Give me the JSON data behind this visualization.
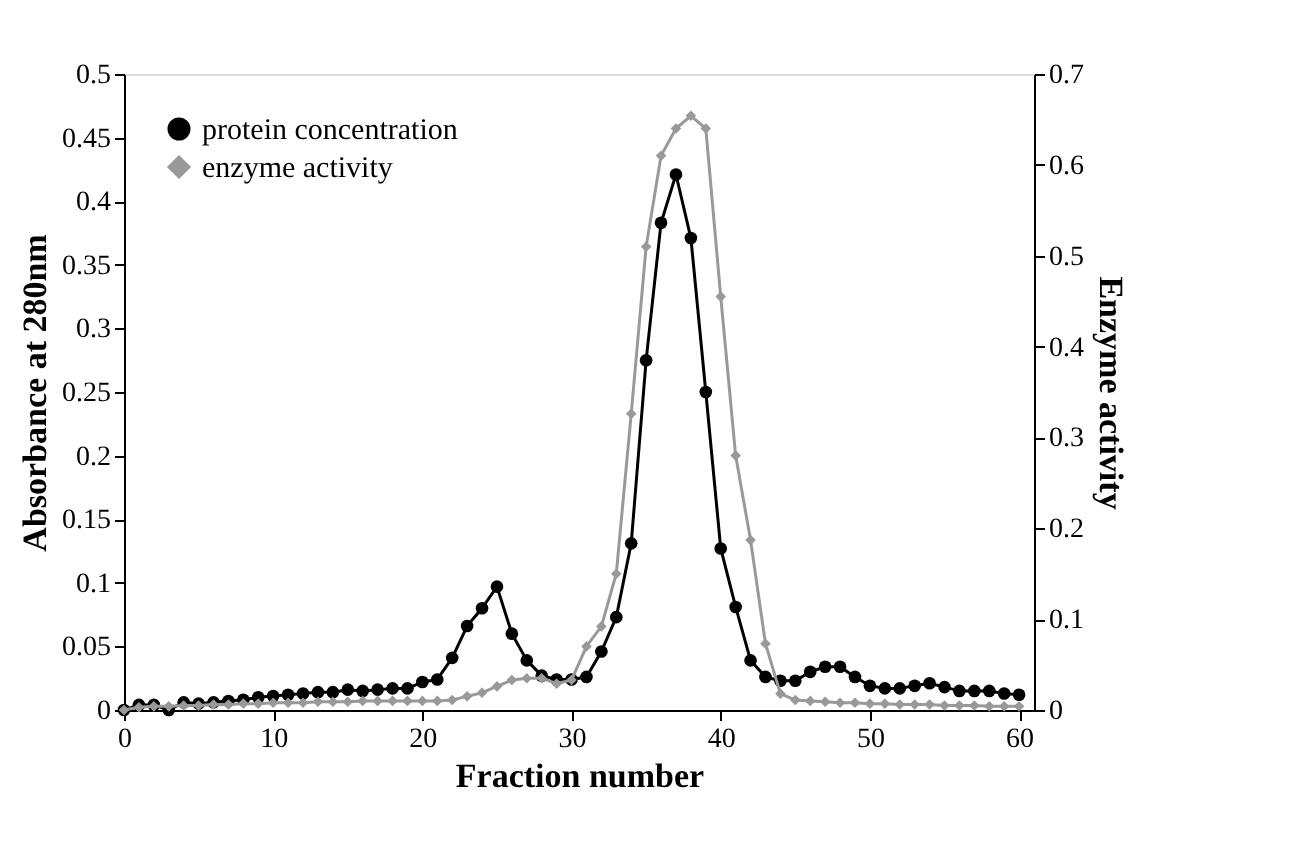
{
  "chart_data": {
    "type": "line",
    "xlabel": "Fraction number",
    "ylabel": "Absorbance at 280nm",
    "y2label": "Enzyme activity",
    "x": [
      0,
      1,
      2,
      3,
      4,
      5,
      6,
      7,
      8,
      9,
      10,
      11,
      12,
      13,
      14,
      15,
      16,
      17,
      18,
      19,
      20,
      21,
      22,
      23,
      24,
      25,
      26,
      27,
      28,
      29,
      30,
      31,
      32,
      33,
      34,
      35,
      36,
      37,
      38,
      39,
      40,
      41,
      42,
      43,
      44,
      45,
      46,
      47,
      48,
      49,
      50,
      51,
      52,
      53,
      54,
      55,
      56,
      57,
      58,
      59,
      60
    ],
    "series": [
      {
        "name": "protein concentration",
        "color": "#000000",
        "marker": "circle",
        "values": [
          0.0,
          0.004,
          0.004,
          0.0,
          0.006,
          0.005,
          0.006,
          0.007,
          0.008,
          0.01,
          0.011,
          0.012,
          0.013,
          0.014,
          0.014,
          0.016,
          0.015,
          0.016,
          0.017,
          0.017,
          0.022,
          0.024,
          0.041,
          0.066,
          0.08,
          0.097,
          0.06,
          0.039,
          0.027,
          0.024,
          0.024,
          0.026,
          0.046,
          0.073,
          0.131,
          0.275,
          0.383,
          0.421,
          0.371,
          0.25,
          0.127,
          0.081,
          0.039,
          0.026,
          0.023,
          0.023,
          0.03,
          0.034,
          0.034,
          0.026,
          0.019,
          0.017,
          0.017,
          0.019,
          0.021,
          0.018,
          0.015,
          0.015,
          0.015,
          0.013,
          0.012
        ]
      },
      {
        "name": "enzyme activity",
        "color": "#999999",
        "marker": "diamond",
        "axis": "y2",
        "values": [
          0.0,
          0.003,
          0.004,
          0.004,
          0.005,
          0.005,
          0.006,
          0.006,
          0.007,
          0.007,
          0.008,
          0.008,
          0.008,
          0.009,
          0.009,
          0.009,
          0.01,
          0.01,
          0.01,
          0.01,
          0.01,
          0.01,
          0.011,
          0.015,
          0.019,
          0.026,
          0.033,
          0.035,
          0.035,
          0.029,
          0.033,
          0.07,
          0.092,
          0.15,
          0.326,
          0.51,
          0.61,
          0.64,
          0.654,
          0.64,
          0.455,
          0.28,
          0.187,
          0.073,
          0.018,
          0.011,
          0.01,
          0.009,
          0.008,
          0.008,
          0.007,
          0.007,
          0.006,
          0.006,
          0.006,
          0.005,
          0.005,
          0.005,
          0.004,
          0.004,
          0.004
        ]
      }
    ],
    "xlim": [
      0,
      61
    ],
    "xticks": [
      0,
      10,
      20,
      30,
      40,
      50,
      60
    ],
    "ylim": [
      0,
      0.5
    ],
    "yticks": [
      0,
      0.05,
      0.1,
      0.15,
      0.2,
      0.25,
      0.3,
      0.35,
      0.4,
      0.45,
      0.5
    ],
    "y2lim": [
      0,
      0.7
    ],
    "y2ticks": [
      0,
      0.1,
      0.2,
      0.3,
      0.4,
      0.5,
      0.6,
      0.7
    ],
    "grid": false,
    "legend": "top left",
    "line_style": "solid"
  }
}
